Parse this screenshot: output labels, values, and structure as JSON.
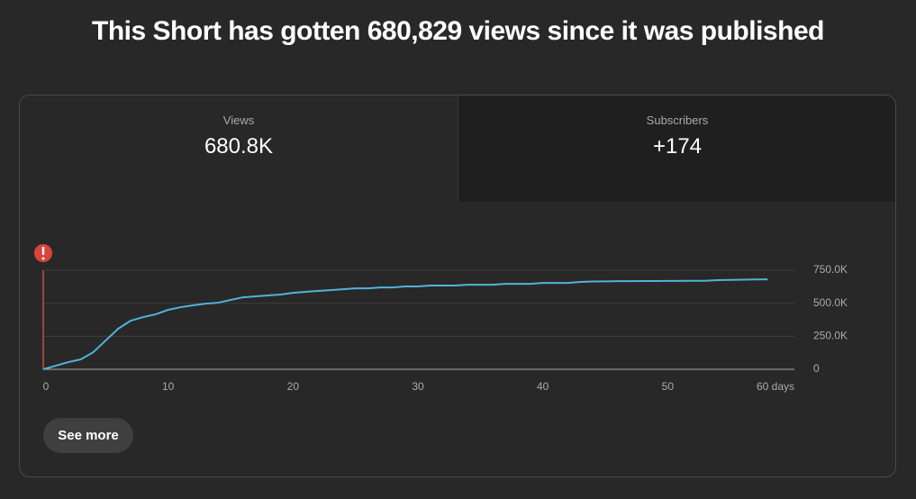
{
  "header": {
    "title": "This Short has gotten 680,829 views since it was published"
  },
  "tabs": [
    {
      "label": "Views",
      "value": "680.8K"
    },
    {
      "label": "Subscribers",
      "value": "+174"
    }
  ],
  "chart_data": {
    "type": "line",
    "x": [
      0,
      1,
      2,
      3,
      4,
      5,
      6,
      7,
      8,
      9,
      10,
      11,
      12,
      13,
      14,
      15,
      16,
      17,
      18,
      19,
      20,
      21,
      22,
      23,
      24,
      25,
      26,
      27,
      28,
      29,
      30,
      31,
      32,
      33,
      34,
      35,
      36,
      37,
      38,
      39,
      40,
      41,
      42,
      43,
      44,
      45,
      46,
      47,
      48,
      49,
      50,
      51,
      52,
      53,
      54,
      55,
      56,
      57,
      58
    ],
    "values": [
      0,
      27000,
      54000,
      75000,
      129000,
      218000,
      307000,
      368000,
      395000,
      416000,
      450000,
      470000,
      484000,
      497000,
      504000,
      525000,
      545000,
      552000,
      559000,
      566000,
      579000,
      586000,
      593000,
      599000,
      606000,
      613000,
      613000,
      620000,
      620000,
      627000,
      627000,
      634000,
      634000,
      634000,
      640000,
      640000,
      640000,
      647000,
      647000,
      647000,
      654000,
      654000,
      654000,
      661000,
      665000,
      666000,
      667000,
      667000,
      668000,
      668000,
      669000,
      669000,
      670000,
      670000,
      675000,
      677000,
      678000,
      680000,
      680829
    ],
    "color": "#4fb3d9",
    "xlim": [
      0,
      60
    ],
    "ylim": [
      0,
      750000
    ],
    "xticks": [
      0,
      10,
      20,
      30,
      40,
      50,
      {
        "value": 60,
        "label": "60 days"
      }
    ],
    "yticks": [
      0,
      {
        "value": 250000,
        "label": "250.0K"
      },
      {
        "value": 500000,
        "label": "500.0K"
      },
      {
        "value": 750000,
        "label": "750.0K"
      }
    ],
    "grid": true
  },
  "button": {
    "label": "See more"
  }
}
